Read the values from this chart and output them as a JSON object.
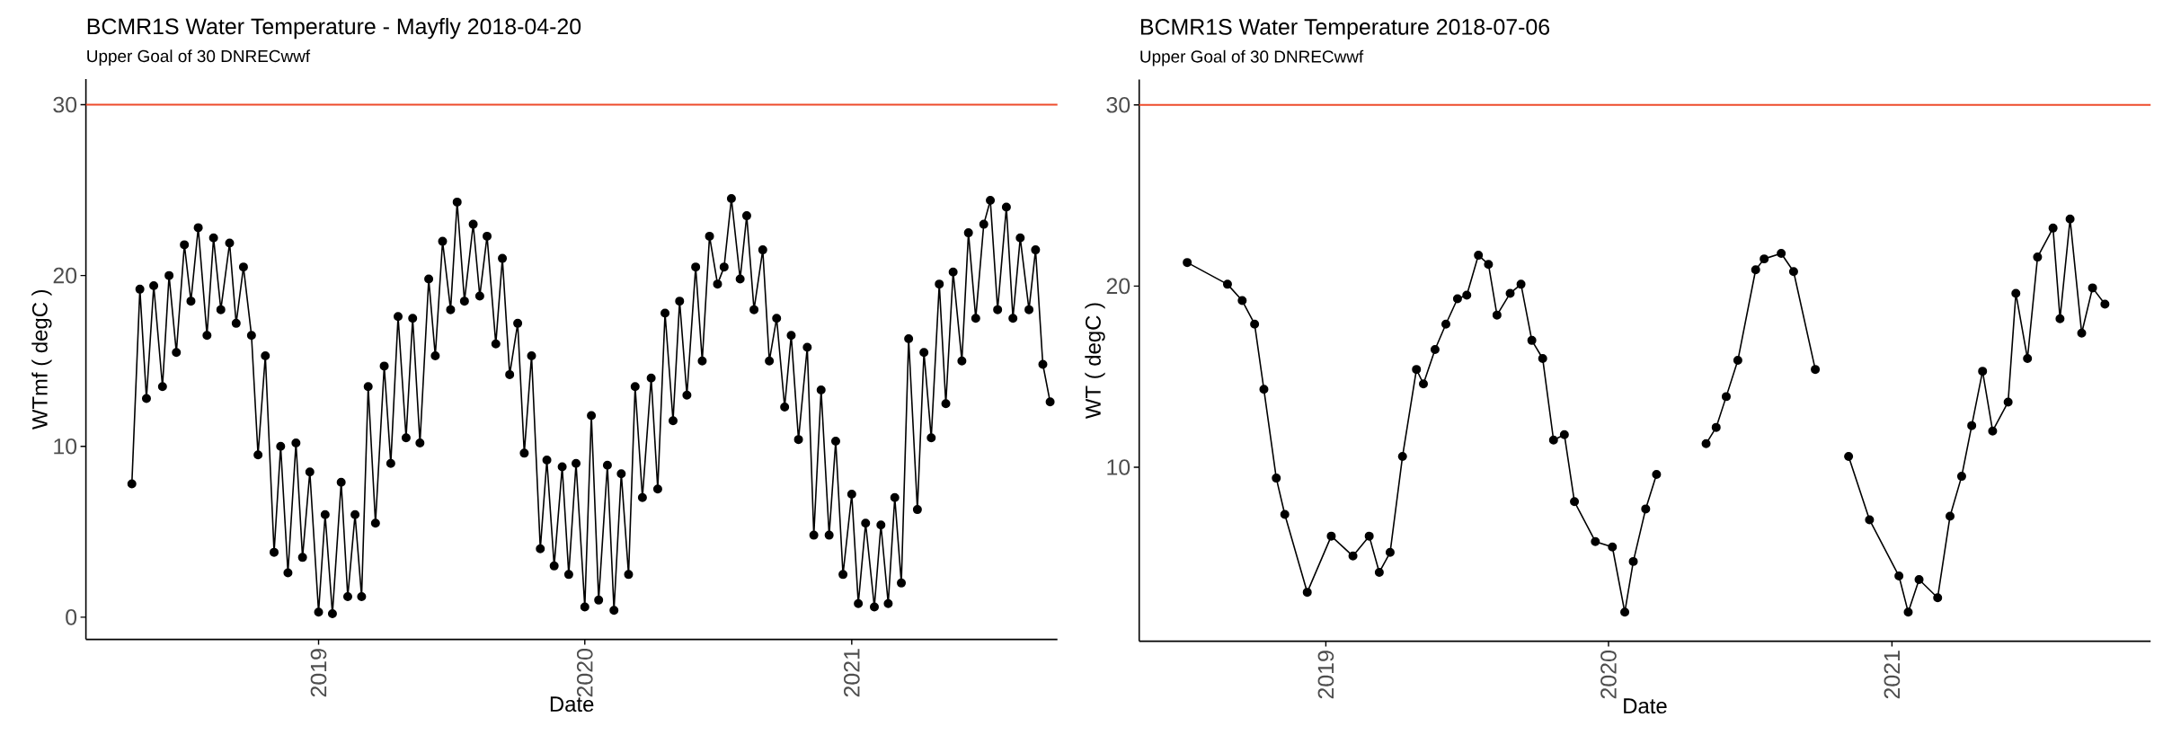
{
  "chart_data": [
    {
      "type": "line",
      "title": "BCMR1S Water Temperature - Mayfly 2018-04-20",
      "subtitle": "Upper Goal of 30 DNRECwwf",
      "xlabel": "Date",
      "ylabel": "WTmf ( degC )",
      "color": "#000000",
      "marker": "circle",
      "xlim": [
        "2018-02-16",
        "2021-10-10"
      ],
      "ylim": [
        -1.3,
        31.5
      ],
      "xticks": [
        "2019",
        "2020",
        "2021"
      ],
      "yticks": [
        0,
        10,
        20,
        30
      ],
      "ref_lines": [
        {
          "axis": "y",
          "value": 30,
          "color": "#ee4b2b"
        }
      ],
      "x": [
        "2018-04-20",
        "2018-05-01",
        "2018-05-10",
        "2018-05-20",
        "2018-06-01",
        "2018-06-10",
        "2018-06-20",
        "2018-07-01",
        "2018-07-10",
        "2018-07-20",
        "2018-08-01",
        "2018-08-10",
        "2018-08-20",
        "2018-09-01",
        "2018-09-10",
        "2018-09-20",
        "2018-10-01",
        "2018-10-10",
        "2018-10-20",
        "2018-11-01",
        "2018-11-10",
        "2018-11-20",
        "2018-12-01",
        "2018-12-10",
        "2018-12-20",
        "2019-01-01",
        "2019-01-10",
        "2019-01-20",
        "2019-02-01",
        "2019-02-10",
        "2019-02-20",
        "2019-03-01",
        "2019-03-10",
        "2019-03-20",
        "2019-04-01",
        "2019-04-10",
        "2019-04-20",
        "2019-05-01",
        "2019-05-10",
        "2019-05-20",
        "2019-06-01",
        "2019-06-10",
        "2019-06-20",
        "2019-07-01",
        "2019-07-10",
        "2019-07-20",
        "2019-08-01",
        "2019-08-10",
        "2019-08-20",
        "2019-09-01",
        "2019-09-10",
        "2019-09-20",
        "2019-10-01",
        "2019-10-10",
        "2019-10-20",
        "2019-11-01",
        "2019-11-10",
        "2019-11-20",
        "2019-12-01",
        "2019-12-10",
        "2019-12-20",
        "2020-01-01",
        "2020-01-10",
        "2020-01-20",
        "2020-02-01",
        "2020-02-10",
        "2020-02-20",
        "2020-03-01",
        "2020-03-10",
        "2020-03-20",
        "2020-04-01",
        "2020-04-10",
        "2020-04-20",
        "2020-05-01",
        "2020-05-10",
        "2020-05-20",
        "2020-06-01",
        "2020-06-10",
        "2020-06-20",
        "2020-07-01",
        "2020-07-10",
        "2020-07-20",
        "2020-08-01",
        "2020-08-10",
        "2020-08-20",
        "2020-09-01",
        "2020-09-10",
        "2020-09-20",
        "2020-10-01",
        "2020-10-10",
        "2020-10-20",
        "2020-11-01",
        "2020-11-10",
        "2020-11-20",
        "2020-12-01",
        "2020-12-10",
        "2020-12-20",
        "2021-01-01",
        "2021-01-10",
        "2021-01-20",
        "2021-02-01",
        "2021-02-10",
        "2021-02-20",
        "2021-03-01",
        "2021-03-10",
        "2021-03-20",
        "2021-04-01",
        "2021-04-10",
        "2021-04-20",
        "2021-05-01",
        "2021-05-10",
        "2021-05-20",
        "2021-06-01",
        "2021-06-10",
        "2021-06-20",
        "2021-07-01",
        "2021-07-10",
        "2021-07-20",
        "2021-08-01",
        "2021-08-10",
        "2021-08-20",
        "2021-09-01",
        "2021-09-10",
        "2021-09-20",
        "2021-09-30"
      ],
      "values": [
        7.8,
        19.2,
        12.8,
        19.4,
        13.5,
        20.0,
        15.5,
        21.8,
        18.5,
        22.8,
        16.5,
        22.2,
        18.0,
        21.9,
        17.2,
        20.5,
        16.5,
        9.5,
        15.3,
        3.8,
        10.0,
        2.6,
        10.2,
        3.5,
        8.5,
        0.3,
        6.0,
        0.2,
        7.9,
        1.2,
        6.0,
        1.2,
        13.5,
        5.5,
        14.7,
        9.0,
        17.6,
        10.5,
        17.5,
        10.2,
        19.8,
        15.3,
        22.0,
        18.0,
        24.3,
        18.5,
        23.0,
        18.8,
        22.3,
        16.0,
        21.0,
        14.2,
        17.2,
        9.6,
        15.3,
        4.0,
        9.2,
        3.0,
        8.8,
        2.5,
        9.0,
        0.6,
        11.8,
        1.0,
        8.9,
        0.4,
        8.4,
        2.5,
        13.5,
        7.0,
        14.0,
        7.5,
        17.8,
        11.5,
        18.5,
        13.0,
        20.5,
        15.0,
        22.3,
        19.5,
        20.5,
        24.5,
        19.8,
        23.5,
        18.0,
        21.5,
        15.0,
        17.5,
        12.3,
        16.5,
        10.4,
        15.8,
        4.8,
        13.3,
        4.8,
        10.3,
        2.5,
        7.2,
        0.8,
        5.5,
        0.6,
        5.4,
        0.8,
        7.0,
        2.0,
        16.3,
        6.3,
        15.5,
        10.5,
        19.5,
        12.5,
        20.2,
        15.0,
        22.5,
        17.5,
        23.0,
        24.4,
        18.0,
        24.0,
        17.5,
        22.2,
        18.0,
        21.5,
        14.8,
        12.6
      ]
    },
    {
      "type": "line",
      "title": "BCMR1S Water Temperature 2018-07-06",
      "subtitle": "Upper Goal of 30 DNRECwwf",
      "xlabel": "Date",
      "ylabel": "WT ( degC )",
      "color": "#000000",
      "marker": "circle",
      "xlim": [
        "2018-05-05",
        "2021-12-01"
      ],
      "ylim": [
        0.4,
        31.4
      ],
      "xticks": [
        "2019",
        "2020",
        "2021"
      ],
      "yticks": [
        10,
        20,
        30
      ],
      "ref_lines": [
        {
          "axis": "y",
          "value": 30,
          "color": "#ee4b2b"
        }
      ],
      "x": [
        "2018-07-06",
        "2018-08-27",
        "2018-09-15",
        "2018-10-01",
        "2018-10-13",
        "2018-10-29",
        "2018-11-09",
        "2018-12-08",
        "2019-01-08",
        "2019-02-05",
        "2019-02-26",
        "2019-03-11",
        "2019-03-25",
        "2019-04-10",
        "2019-04-28",
        "2019-05-07",
        "2019-05-22",
        "2019-06-05",
        "2019-06-20",
        "2019-07-02",
        "2019-07-17",
        "2019-07-30",
        "2019-08-10",
        "2019-08-27",
        "2019-09-10",
        "2019-09-24",
        "2019-10-08",
        "2019-10-22",
        "2019-11-05",
        "2019-11-18",
        "2019-12-15",
        "2020-01-06",
        "2020-01-22",
        "2020-02-02",
        "2020-02-18",
        "2020-03-03",
        "2020-04-05",
        "2020-05-06",
        "2020-05-19",
        "2020-06-01",
        "2020-06-16",
        "2020-07-09",
        "2020-07-20",
        "2020-08-11",
        "2020-08-27",
        "2020-09-24",
        "2020-10-15",
        "2020-11-06",
        "2020-12-03",
        "2021-01-10",
        "2021-01-22",
        "2021-02-05",
        "2021-03-01",
        "2021-03-17",
        "2021-04-01",
        "2021-04-14",
        "2021-04-28",
        "2021-05-11",
        "2021-05-31",
        "2021-06-10",
        "2021-06-25",
        "2021-07-08",
        "2021-07-28",
        "2021-08-06",
        "2021-08-19",
        "2021-09-03",
        "2021-09-17",
        "2021-10-03"
      ],
      "values": [
        21.3,
        20.1,
        19.2,
        17.9,
        14.3,
        9.4,
        7.4,
        3.1,
        6.2,
        5.1,
        6.2,
        4.2,
        5.3,
        10.6,
        15.4,
        14.6,
        16.5,
        17.9,
        19.3,
        19.5,
        21.7,
        21.2,
        18.4,
        19.6,
        20.1,
        17.0,
        16.0,
        11.5,
        11.8,
        8.1,
        5.9,
        5.6,
        2.0,
        4.8,
        7.7,
        9.6,
        null,
        11.3,
        12.2,
        13.9,
        15.9,
        20.9,
        21.5,
        21.8,
        20.8,
        15.4,
        null,
        10.6,
        7.1,
        4.0,
        2.0,
        3.8,
        2.8,
        7.3,
        9.5,
        12.3,
        15.3,
        12.0,
        13.6,
        19.6,
        16.0,
        21.6,
        23.2,
        18.2,
        23.7,
        17.4,
        19.9,
        19.0
      ]
    }
  ]
}
